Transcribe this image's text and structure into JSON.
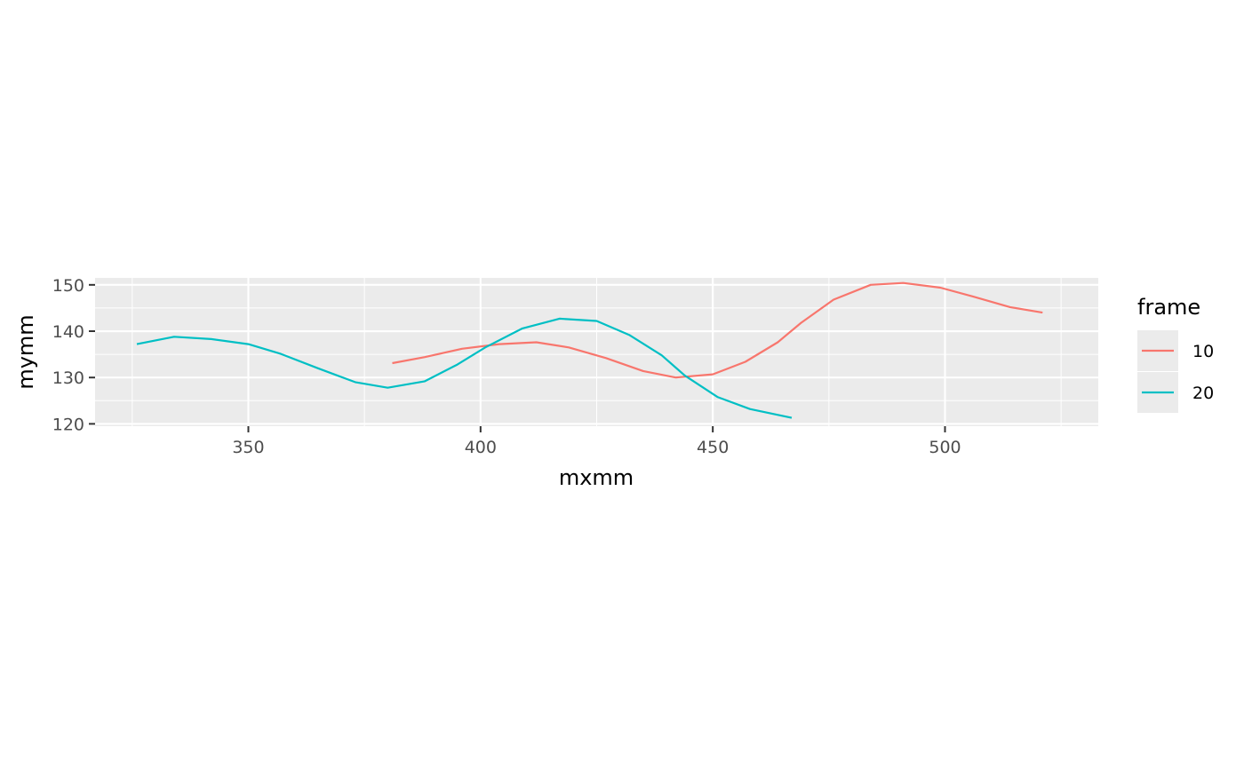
{
  "chart_data": {
    "type": "line",
    "xlabel": "mxmm",
    "ylabel": "mymm",
    "xlim": [
      317,
      533
    ],
    "ylim": [
      119.5,
      151.5
    ],
    "x_ticks": [
      350,
      400,
      450,
      500
    ],
    "y_ticks": [
      120,
      130,
      140,
      150
    ],
    "grid": true,
    "legend": {
      "title": "frame",
      "position": "right"
    },
    "series": [
      {
        "name": "10",
        "color": "#F8766D",
        "points": [
          [
            381,
            133.1
          ],
          [
            388,
            134.4
          ],
          [
            396,
            136.2
          ],
          [
            404,
            137.2
          ],
          [
            412,
            137.6
          ],
          [
            419,
            136.5
          ],
          [
            427,
            134.2
          ],
          [
            435,
            131.4
          ],
          [
            442,
            130.0
          ],
          [
            450,
            130.7
          ],
          [
            457,
            133.4
          ],
          [
            464,
            137.6
          ],
          [
            469,
            141.8
          ],
          [
            476,
            146.8
          ],
          [
            484,
            150.0
          ],
          [
            491,
            150.4
          ],
          [
            499,
            149.4
          ],
          [
            506,
            147.5
          ],
          [
            514,
            145.2
          ],
          [
            521,
            144.0
          ]
        ]
      },
      {
        "name": "20",
        "color": "#00BFC4",
        "points": [
          [
            326,
            137.2
          ],
          [
            334,
            138.8
          ],
          [
            342,
            138.3
          ],
          [
            350,
            137.2
          ],
          [
            357,
            135.1
          ],
          [
            365,
            132.0
          ],
          [
            373,
            129.0
          ],
          [
            380,
            127.8
          ],
          [
            388,
            129.2
          ],
          [
            395,
            132.8
          ],
          [
            401,
            136.5
          ],
          [
            409,
            140.6
          ],
          [
            417,
            142.7
          ],
          [
            425,
            142.2
          ],
          [
            432,
            139.2
          ],
          [
            439,
            134.8
          ],
          [
            444,
            130.4
          ],
          [
            451,
            125.8
          ],
          [
            458,
            123.2
          ],
          [
            467,
            121.3
          ]
        ]
      }
    ]
  }
}
